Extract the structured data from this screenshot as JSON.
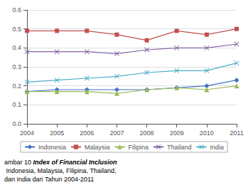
{
  "chart_data": {
    "type": "line",
    "x": [
      2004,
      2005,
      2006,
      2007,
      2008,
      2009,
      2010,
      2011
    ],
    "xlim": [
      2004,
      2011
    ],
    "xticks": [
      2004,
      2005,
      2006,
      2007,
      2008,
      2009,
      2010,
      2011
    ],
    "series": [
      {
        "name": "Indonesia",
        "color": "#4472C4",
        "marker": "diamond",
        "values": [
          0.17,
          0.18,
          0.18,
          0.18,
          0.18,
          0.19,
          0.2,
          0.23
        ]
      },
      {
        "name": "Malaysia",
        "color": "#C0504D",
        "marker": "square",
        "values": [
          0.49,
          0.49,
          0.49,
          0.47,
          0.44,
          0.49,
          0.47,
          0.5
        ]
      },
      {
        "name": "Filipina",
        "color": "#9BBB59",
        "marker": "triangle",
        "values": [
          0.17,
          0.17,
          0.17,
          0.16,
          0.18,
          0.19,
          0.18,
          0.2
        ]
      },
      {
        "name": "Thailand",
        "color": "#8064A2",
        "marker": "x",
        "values": [
          0.38,
          0.38,
          0.38,
          0.37,
          0.39,
          0.4,
          0.4,
          0.42
        ]
      },
      {
        "name": "India",
        "color": "#4BACC6",
        "marker": "x",
        "values": [
          0.22,
          0.23,
          0.24,
          0.25,
          0.27,
          0.28,
          0.28,
          0.32
        ]
      }
    ],
    "ylim": [
      0,
      0.6
    ],
    "yticks": [
      {
        "value": 0,
        "label": "0.0"
      },
      0.1,
      0.2,
      0.3,
      0.4,
      0.5,
      0.6
    ],
    "grid": true,
    "legend": "bottom",
    "annotations": [
      "ambar 10 ",
      "Index of Financial Inclusion",
      " Indonesia, Malaysia, Filipina, Thailand,",
      "dan India dari Tahun 2004-2011"
    ]
  }
}
